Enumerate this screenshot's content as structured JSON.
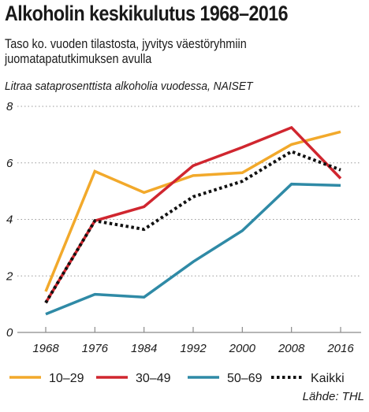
{
  "header": {
    "title": "Alkoholin keskikulutus 1968–2016",
    "subtitle_line1": "Taso ko. vuoden tilastosta, jyvitys väestöryhmiin",
    "subtitle_line2": "juomatapatutkimuksen avulla",
    "unit_label": "Litraa sataprosenttista alkoholia vuodessa,  NAISET"
  },
  "footer": {
    "source": "Lähde: THL"
  },
  "chart_data": {
    "type": "line",
    "title": "Alkoholin keskikulutus 1968–2016",
    "ylabel": "Litraa sataprosenttista alkoholia vuodessa,  NAISET",
    "xlabel": "",
    "x": [
      1968,
      1976,
      1984,
      1992,
      2000,
      2008,
      2016
    ],
    "x_tick_labels": [
      "1968",
      "1976",
      "1984",
      "1992",
      "2000",
      "2008",
      "2016"
    ],
    "ylim": [
      0,
      8
    ],
    "y_ticks": [
      0,
      2,
      4,
      6,
      8
    ],
    "y_tick_labels": [
      "0",
      "2",
      "4",
      "6",
      "8"
    ],
    "grid": "horizontal-dotted",
    "legend_position": "bottom",
    "series": [
      {
        "name": "10–29",
        "color": "#f2a92b",
        "dash": "solid",
        "values": [
          1.45,
          5.7,
          4.95,
          5.55,
          5.65,
          6.65,
          7.1
        ]
      },
      {
        "name": "30–49",
        "color": "#d0262f",
        "dash": "solid",
        "values": [
          1.05,
          3.95,
          4.45,
          5.9,
          6.55,
          7.25,
          5.45
        ]
      },
      {
        "name": "50–69",
        "color": "#2f8aa6",
        "dash": "solid",
        "values": [
          0.65,
          1.35,
          1.25,
          2.5,
          3.6,
          5.25,
          5.2
        ]
      },
      {
        "name": "Kaikki",
        "color": "#111111",
        "dash": "dotted",
        "values": [
          1.05,
          3.95,
          3.65,
          4.8,
          5.35,
          6.4,
          5.75
        ]
      }
    ]
  }
}
